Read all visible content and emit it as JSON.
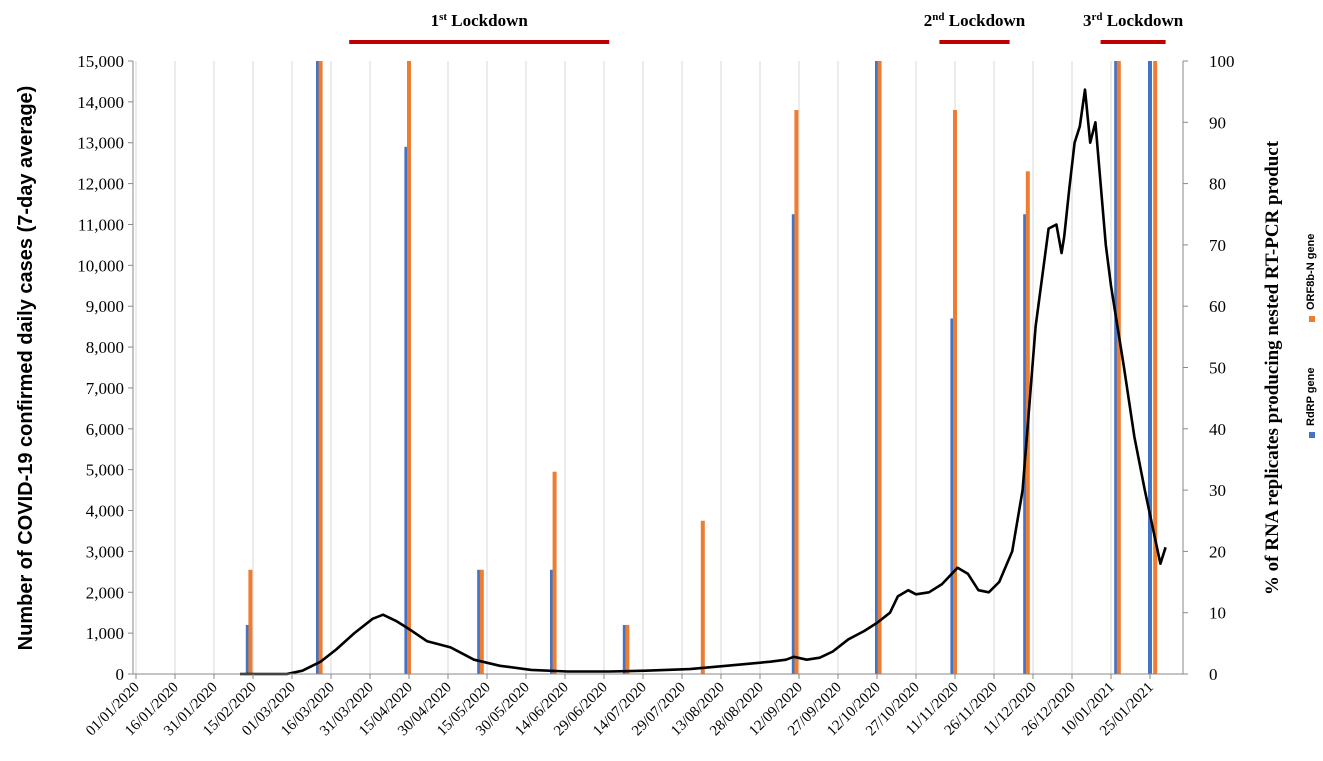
{
  "chart_data": {
    "type": "bar",
    "xlabel": "",
    "ylabel": "Number of COVID-19 confirmed daily cases (7-day average)",
    "y2label": "% of RNA replicates producing nested RT-PCR product",
    "ylim": [
      0,
      15000
    ],
    "y2lim": [
      0,
      100
    ],
    "grid": "vertical gridlines",
    "x_ticks": [
      "01/01/2020",
      "16/01/2020",
      "31/01/2020",
      "15/02/2020",
      "01/03/2020",
      "16/03/2020",
      "31/03/2020",
      "15/04/2020",
      "30/04/2020",
      "15/05/2020",
      "30/05/2020",
      "14/06/2020",
      "29/06/2020",
      "14/07/2020",
      "29/07/2020",
      "13/08/2020",
      "28/08/2020",
      "12/09/2020",
      "27/09/2020",
      "12/10/2020",
      "27/10/2020",
      "11/11/2020",
      "26/11/2020",
      "11/12/2020",
      "26/12/2020",
      "10/01/2021",
      "25/01/2021"
    ],
    "y_ticks": [
      "0",
      "1,000",
      "2,000",
      "3,000",
      "4,000",
      "5,000",
      "6,000",
      "7,000",
      "8,000",
      "9,000",
      "10,000",
      "11,000",
      "12,000",
      "13,000",
      "14,000",
      "15,000"
    ],
    "y2_ticks": [
      "0",
      "10",
      "20",
      "30",
      "40",
      "50",
      "60",
      "70",
      "80",
      "90",
      "100"
    ],
    "bar_series": [
      {
        "name": "RdRP gene",
        "color": "#4472C4",
        "dates": [
          "13/02/2020",
          "11/03/2020",
          "14/04/2020",
          "12/05/2020",
          "09/06/2020",
          "07/07/2020",
          "10/09/2020",
          "12/10/2020",
          "10/11/2020",
          "08/12/2020",
          "12/01/2021",
          "25/01/2021"
        ],
        "values": [
          8,
          100,
          86,
          17,
          17,
          8,
          75,
          100,
          58,
          75,
          100,
          100
        ]
      },
      {
        "name": "ORF8b-N gene",
        "color": "#ED7D31",
        "dates": [
          "14/02/2020",
          "12/03/2020",
          "15/04/2020",
          "13/05/2020",
          "10/06/2020",
          "08/07/2020",
          "06/08/2020",
          "11/09/2020",
          "13/10/2020",
          "11/11/2020",
          "09/12/2020",
          "13/01/2021",
          "27/01/2021"
        ],
        "values": [
          17,
          100,
          100,
          17,
          33,
          8,
          25,
          92,
          100,
          92,
          82,
          100,
          100
        ]
      }
    ],
    "line_series": {
      "color": "#000000",
      "x": [
        "10/02/2020",
        "28/02/2020",
        "05/03/2020",
        "12/03/2020",
        "18/03/2020",
        "25/03/2020",
        "01/04/2020",
        "05/04/2020",
        "10/04/2020",
        "15/04/2020",
        "22/04/2020",
        "01/05/2020",
        "10/05/2020",
        "20/05/2020",
        "01/06/2020",
        "15/06/2020",
        "01/07/2020",
        "15/07/2020",
        "01/08/2020",
        "15/08/2020",
        "01/09/2020",
        "07/09/2020",
        "10/09/2020",
        "15/09/2020",
        "20/09/2020",
        "25/09/2020",
        "01/10/2020",
        "07/10/2020",
        "12/10/2020",
        "17/10/2020",
        "20/10/2020",
        "24/10/2020",
        "27/10/2020",
        "01/11/2020",
        "06/11/2020",
        "12/11/2020",
        "16/11/2020",
        "20/11/2020",
        "24/11/2020",
        "28/11/2020",
        "03/12/2020",
        "07/12/2020",
        "12/12/2020",
        "17/12/2020",
        "20/12/2020",
        "22/12/2020",
        "23/12/2020",
        "25/12/2020",
        "27/12/2020",
        "29/12/2020",
        "31/12/2020",
        "02/01/2021",
        "04/01/2021",
        "06/01/2021",
        "08/01/2021",
        "10/01/2021",
        "12/01/2021",
        "15/01/2021",
        "19/01/2021",
        "23/01/2021",
        "27/01/2021",
        "29/01/2021",
        "31/01/2021"
      ],
      "y": [
        0,
        0,
        80,
        300,
        600,
        1000,
        1350,
        1450,
        1300,
        1100,
        800,
        650,
        350,
        200,
        100,
        60,
        60,
        80,
        120,
        200,
        300,
        350,
        420,
        350,
        400,
        550,
        850,
        1050,
        1250,
        1500,
        1900,
        2050,
        1950,
        2000,
        2200,
        2600,
        2450,
        2050,
        2000,
        2250,
        3000,
        4500,
        8500,
        10900,
        11000,
        10300,
        10700,
        11900,
        13000,
        13400,
        14300,
        13000,
        13500,
        12000,
        10500,
        9500,
        8700,
        7500,
        5800,
        4500,
        3300,
        2700,
        3100
      ]
    },
    "annotations": [
      {
        "text": "1st Lockdown",
        "base": "1",
        "sup": "st",
        "rest": " Lockdown",
        "start": "23/03/2020",
        "end": "01/07/2020",
        "color": "#C00000"
      },
      {
        "text": "2nd Lockdown",
        "base": "2",
        "sup": "nd",
        "rest": " Lockdown",
        "start": "05/11/2020",
        "end": "02/12/2020",
        "color": "#C00000"
      },
      {
        "text": "3rd Lockdown",
        "base": "3",
        "sup": "rd",
        "rest": " Lockdown",
        "start": "06/01/2021",
        "end": "31/01/2021",
        "color": "#C00000"
      }
    ]
  }
}
